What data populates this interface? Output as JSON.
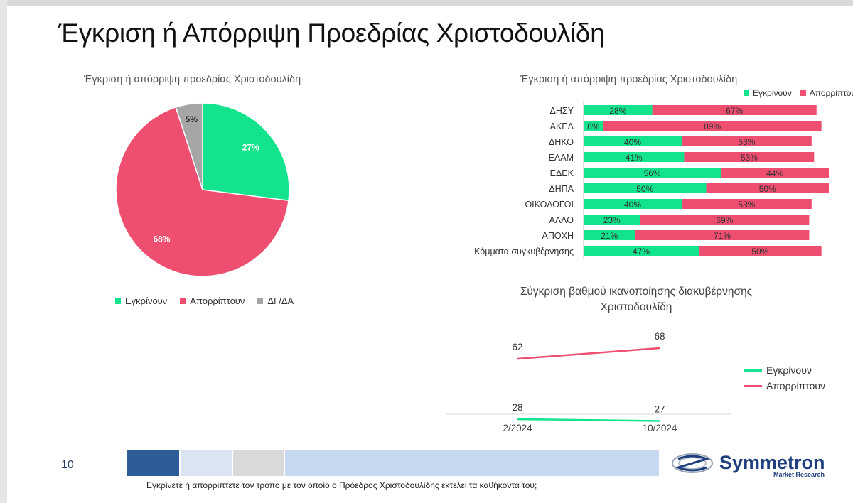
{
  "slide": {
    "title": "Έγκριση ή Απόρριψη Προεδρίας Χριστοδουλίδη",
    "page_number": "10",
    "footnote": "Εγκρίνετε ή απορρίπτετε τον τρόπο με τον οποίο ο Πρόεδρος Χριστοδουλίδης εκτελεί τα καθήκοντα του;"
  },
  "logo": {
    "name": "Symmetron",
    "tagline": "Market Research"
  },
  "colors": {
    "approve": "#13e38c",
    "reject": "#ee4f70",
    "dk": "#a6a6a6"
  },
  "chart_data": [
    {
      "type": "pie",
      "title": "Έγκριση ή απόρριψη προεδρίας Χριστοδουλίδη",
      "categories": [
        "Εγκρίνουν",
        "Απορρίπτουν",
        "ΔΓ/ΔΑ"
      ],
      "values": [
        27,
        68,
        5
      ],
      "labels": [
        "27%",
        "68%",
        "5%"
      ],
      "legend": "bottom"
    },
    {
      "type": "bar",
      "orientation": "horizontal-stacked",
      "title": "Έγκριση ή απόρριψη προεδρίας Χριστοδουλίδη",
      "categories": [
        "ΔΗΣΥ",
        "ΑΚΕΛ",
        "ΔΗΚΟ",
        "ΕΛΑΜ",
        "ΕΔΕΚ",
        "ΔΗΠΑ",
        "ΟΙΚΟΛΟΓΟΙ",
        "ΑΛΛΟ",
        "ΑΠΟΧΗ",
        "Κόμματα συγκυβέρνησης"
      ],
      "series": [
        {
          "name": "Εγκρίνουν",
          "values": [
            28,
            8,
            40,
            41,
            56,
            50,
            40,
            23,
            21,
            47
          ]
        },
        {
          "name": "Απορρίπτουν",
          "values": [
            67,
            89,
            53,
            53,
            44,
            50,
            53,
            69,
            71,
            50
          ]
        }
      ],
      "legend": "top-right"
    },
    {
      "type": "line",
      "title": "Σύγκριση βαθμού ικανοποίησης διακυβέρνησης Χριστοδουλίδη",
      "x": [
        "2/2024",
        "10/2024"
      ],
      "series": [
        {
          "name": "Εγκρίνουν",
          "values": [
            28,
            27
          ]
        },
        {
          "name": "Απορρίπτουν",
          "values": [
            62,
            68
          ]
        }
      ],
      "legend": "right"
    }
  ]
}
